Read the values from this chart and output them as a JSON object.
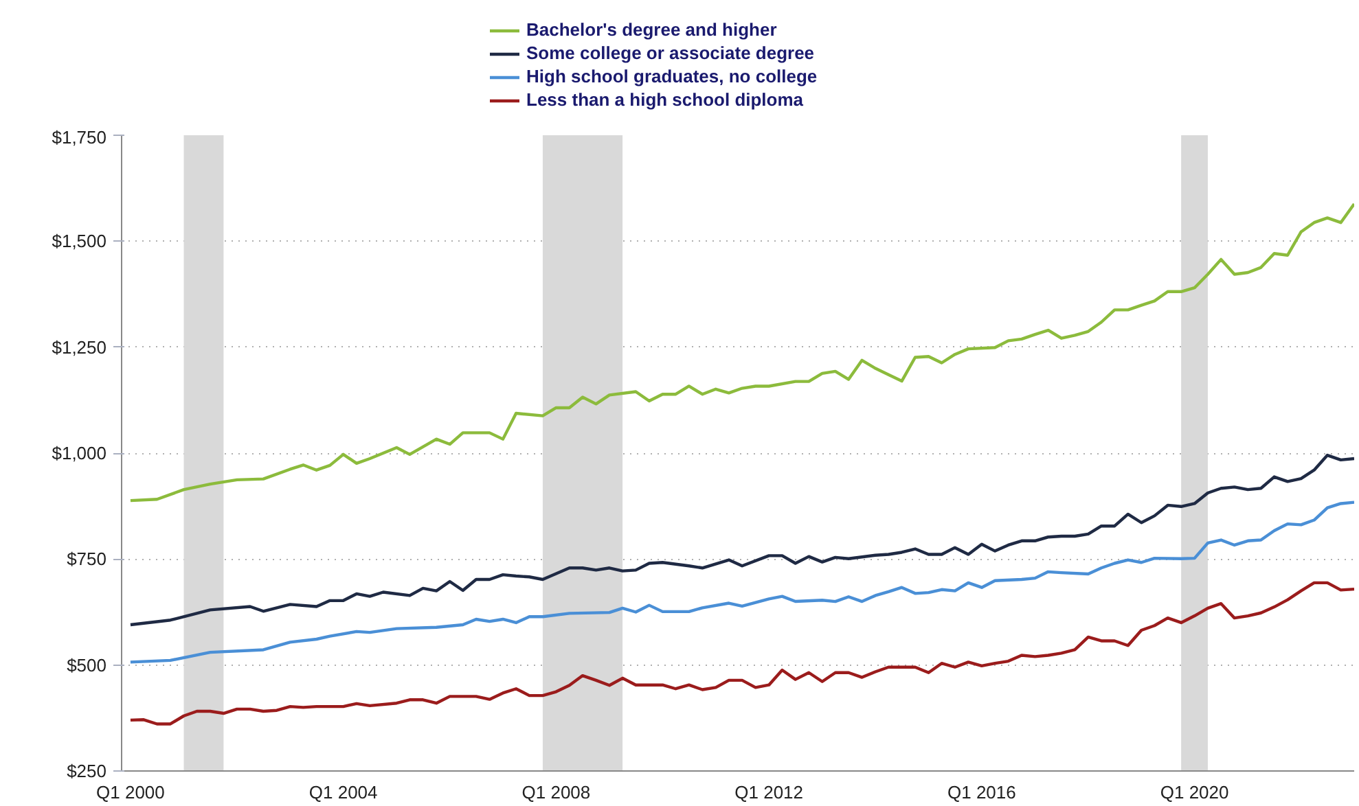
{
  "chart_data": {
    "type": "line",
    "xlim": [
      "1999-11",
      "2023-01"
    ],
    "xticks": [
      {
        "value": "2000-01",
        "label": "Q1 2000"
      },
      {
        "value": "2004-01",
        "label": "Q1 2004"
      },
      {
        "value": "2008-01",
        "label": "Q1 2008"
      },
      {
        "value": "2012-01",
        "label": "Q1 2012"
      },
      {
        "value": "2016-01",
        "label": "Q1 2016"
      },
      {
        "value": "2020-01",
        "label": "Q1 2020"
      }
    ],
    "ylim": [
      250,
      1750
    ],
    "yticks": [
      {
        "value": 250,
        "label": "$250"
      },
      {
        "value": 500,
        "label": "$500"
      },
      {
        "value": 750,
        "label": "$750"
      },
      {
        "value": 1000,
        "label": "$1,000"
      },
      {
        "value": 1250,
        "label": "$1,250"
      },
      {
        "value": 1500,
        "label": "$1,500"
      },
      {
        "value": 1750,
        "label": "$1,750"
      }
    ],
    "grid": "y",
    "legend": "top",
    "line_style": "solid",
    "bands": [
      {
        "axis": "x",
        "from": "2001-01",
        "to": "2001-10",
        "color": "#d9d9d9"
      },
      {
        "axis": "x",
        "from": "2007-10",
        "to": "2009-04",
        "color": "#d9d9d9"
      },
      {
        "axis": "x",
        "from": "2019-10",
        "to": "2020-04",
        "color": "#d9d9d9"
      }
    ],
    "series": [
      {
        "name": "Bachelor's degree and higher",
        "color": "#8cbb3c",
        "x": [
          "2000-01",
          "2000-07",
          "2001-01",
          "2001-07",
          "2002-01",
          "2002-07",
          "2003-01",
          "2003-04",
          "2003-07",
          "2003-10",
          "2004-01",
          "2004-04",
          "2004-07",
          "2005-01",
          "2005-04",
          "2005-10",
          "2006-01",
          "2006-04",
          "2006-10",
          "2007-01",
          "2007-04",
          "2007-10",
          "2008-01",
          "2008-04",
          "2008-07",
          "2008-10",
          "2009-01",
          "2009-07",
          "2009-10",
          "2010-01",
          "2010-04",
          "2010-07",
          "2010-10",
          "2011-01",
          "2011-04",
          "2011-07",
          "2011-10",
          "2012-01",
          "2012-07",
          "2012-10",
          "2013-01",
          "2013-04",
          "2013-07",
          "2013-10",
          "2014-01",
          "2014-04",
          "2014-07",
          "2014-10",
          "2015-01",
          "2015-04",
          "2015-07",
          "2015-10",
          "2016-04",
          "2016-07",
          "2016-10",
          "2017-01",
          "2017-04",
          "2017-07",
          "2017-10",
          "2018-01",
          "2018-04",
          "2018-07",
          "2018-10",
          "2019-01",
          "2019-04",
          "2019-07",
          "2019-10",
          "2020-01",
          "2020-04",
          "2020-07",
          "2020-10",
          "2021-01",
          "2021-04",
          "2021-07",
          "2021-10",
          "2022-01",
          "2022-04",
          "2022-07",
          "2022-10",
          "2023-01"
        ],
        "values": [
          888,
          891,
          914,
          927,
          937,
          939,
          962,
          972,
          960,
          971,
          997,
          976,
          987,
          1013,
          997,
          1033,
          1021,
          1048,
          1048,
          1033,
          1094,
          1088,
          1107,
          1107,
          1132,
          1116,
          1137,
          1145,
          1123,
          1139,
          1139,
          1158,
          1139,
          1151,
          1142,
          1153,
          1158,
          1158,
          1169,
          1169,
          1188,
          1193,
          1174,
          1219,
          1200,
          1185,
          1170,
          1226,
          1228,
          1213,
          1233,
          1246,
          1249,
          1265,
          1269,
          1280,
          1290,
          1271,
          1278,
          1287,
          1309,
          1338,
          1338,
          1349,
          1359,
          1381,
          1381,
          1390,
          1422,
          1457,
          1422,
          1426,
          1438,
          1471,
          1467,
          1522,
          1544,
          1555,
          1544,
          1588
        ]
      },
      {
        "name": "Some college or associate degree",
        "color": "#1f2a44",
        "x": [
          "2000-01",
          "2000-10",
          "2001-07",
          "2002-04",
          "2002-07",
          "2003-01",
          "2003-07",
          "2003-10",
          "2004-01",
          "2004-04",
          "2004-07",
          "2004-10",
          "2005-04",
          "2005-07",
          "2005-10",
          "2006-01",
          "2006-04",
          "2006-07",
          "2006-10",
          "2007-01",
          "2007-04",
          "2007-07",
          "2007-10",
          "2008-04",
          "2008-07",
          "2008-10",
          "2009-01",
          "2009-04",
          "2009-07",
          "2009-10",
          "2010-01",
          "2010-07",
          "2010-10",
          "2011-04",
          "2011-07",
          "2012-01",
          "2012-04",
          "2012-07",
          "2012-10",
          "2013-01",
          "2013-04",
          "2013-07",
          "2014-01",
          "2014-04",
          "2014-07",
          "2014-10",
          "2015-01",
          "2015-04",
          "2015-07",
          "2015-10",
          "2016-01",
          "2016-04",
          "2016-07",
          "2016-10",
          "2017-01",
          "2017-04",
          "2017-07",
          "2017-10",
          "2018-01",
          "2018-04",
          "2018-07",
          "2018-10",
          "2019-01",
          "2019-04",
          "2019-07",
          "2019-10",
          "2020-01",
          "2020-04",
          "2020-07",
          "2020-10",
          "2021-01",
          "2021-04",
          "2021-07",
          "2021-10",
          "2022-01",
          "2022-04",
          "2022-07",
          "2022-10",
          "2023-01"
        ],
        "values": [
          595,
          606,
          630,
          638,
          627,
          643,
          638,
          652,
          652,
          668,
          662,
          672,
          664,
          681,
          675,
          697,
          676,
          702,
          702,
          713,
          710,
          708,
          702,
          729,
          729,
          724,
          729,
          722,
          724,
          740,
          742,
          734,
          729,
          748,
          734,
          758,
          758,
          740,
          756,
          743,
          754,
          751,
          759,
          761,
          766,
          774,
          761,
          761,
          777,
          761,
          785,
          769,
          783,
          793,
          793,
          802,
          804,
          804,
          809,
          828,
          828,
          856,
          836,
          852,
          877,
          874,
          881,
          906,
          917,
          920,
          914,
          917,
          944,
          933,
          940,
          960,
          995,
          984,
          987
        ]
      },
      {
        "name": "High school graduates, no college",
        "color": "#4a8fd6",
        "x": [
          "2000-01",
          "2000-10",
          "2001-07",
          "2002-07",
          "2003-01",
          "2003-07",
          "2003-10",
          "2004-04",
          "2004-07",
          "2005-01",
          "2005-10",
          "2006-04",
          "2006-07",
          "2006-10",
          "2007-01",
          "2007-04",
          "2007-07",
          "2007-10",
          "2008-04",
          "2009-01",
          "2009-04",
          "2009-07",
          "2009-10",
          "2010-01",
          "2010-07",
          "2010-10",
          "2011-04",
          "2011-07",
          "2012-01",
          "2012-04",
          "2012-07",
          "2013-01",
          "2013-04",
          "2013-07",
          "2013-10",
          "2014-01",
          "2014-04",
          "2014-07",
          "2014-10",
          "2015-01",
          "2015-04",
          "2015-07",
          "2015-10",
          "2016-01",
          "2016-04",
          "2016-10",
          "2017-01",
          "2017-04",
          "2017-07",
          "2018-01",
          "2018-04",
          "2018-07",
          "2018-10",
          "2019-01",
          "2019-04",
          "2019-10",
          "2020-01",
          "2020-04",
          "2020-07",
          "2020-10",
          "2021-01",
          "2021-04",
          "2021-07",
          "2021-10",
          "2022-01",
          "2022-04",
          "2022-07",
          "2022-10",
          "2023-01"
        ],
        "values": [
          507,
          511,
          530,
          536,
          554,
          561,
          568,
          579,
          577,
          586,
          589,
          595,
          608,
          603,
          608,
          600,
          614,
          614,
          622,
          624,
          634,
          625,
          641,
          626,
          626,
          635,
          646,
          639,
          656,
          662,
          650,
          653,
          650,
          661,
          650,
          664,
          673,
          683,
          669,
          671,
          678,
          675,
          694,
          683,
          699,
          702,
          705,
          720,
          718,
          715,
          729,
          740,
          748,
          742,
          752,
          751,
          752,
          788,
          795,
          783,
          793,
          795,
          817,
          833,
          831,
          842,
          871,
          881,
          884
        ]
      },
      {
        "name": "Less than a high school diploma",
        "color": "#9b1c1c",
        "x": [
          "2000-01",
          "2000-04",
          "2000-07",
          "2000-10",
          "2001-01",
          "2001-04",
          "2001-07",
          "2001-10",
          "2002-01",
          "2002-04",
          "2002-07",
          "2002-10",
          "2003-01",
          "2003-04",
          "2003-07",
          "2004-01",
          "2004-04",
          "2004-07",
          "2005-01",
          "2005-04",
          "2005-07",
          "2005-10",
          "2006-01",
          "2006-07",
          "2006-10",
          "2007-01",
          "2007-04",
          "2007-07",
          "2007-10",
          "2008-01",
          "2008-04",
          "2008-07",
          "2008-10",
          "2009-01",
          "2009-04",
          "2009-07",
          "2010-01",
          "2010-04",
          "2010-07",
          "2010-10",
          "2011-01",
          "2011-04",
          "2011-07",
          "2011-10",
          "2012-01",
          "2012-04",
          "2012-07",
          "2012-10",
          "2013-01",
          "2013-04",
          "2013-07",
          "2013-10",
          "2014-01",
          "2014-04",
          "2014-10",
          "2015-01",
          "2015-04",
          "2015-07",
          "2015-10",
          "2016-01",
          "2016-04",
          "2016-07",
          "2016-10",
          "2017-01",
          "2017-04",
          "2017-07",
          "2017-10",
          "2018-01",
          "2018-04",
          "2018-07",
          "2018-10",
          "2019-01",
          "2019-04",
          "2019-07",
          "2019-10",
          "2020-01",
          "2020-04",
          "2020-07",
          "2020-10",
          "2021-01",
          "2021-04",
          "2021-07",
          "2021-10",
          "2022-01",
          "2022-04",
          "2022-07",
          "2022-10",
          "2023-01"
        ],
        "values": [
          370,
          371,
          361,
          361,
          380,
          391,
          391,
          386,
          396,
          396,
          391,
          393,
          402,
          400,
          402,
          402,
          409,
          404,
          410,
          418,
          418,
          410,
          426,
          426,
          419,
          434,
          444,
          428,
          428,
          437,
          452,
          475,
          464,
          452,
          469,
          453,
          453,
          444,
          453,
          442,
          447,
          464,
          464,
          447,
          453,
          488,
          466,
          482,
          461,
          482,
          482,
          471,
          484,
          495,
          495,
          482,
          504,
          495,
          507,
          498,
          504,
          509,
          523,
          520,
          523,
          528,
          536,
          566,
          557,
          557,
          546,
          582,
          593,
          611,
          600,
          616,
          634,
          645,
          611,
          616,
          623,
          637,
          654,
          675,
          694,
          694,
          677,
          679
        ]
      }
    ]
  }
}
